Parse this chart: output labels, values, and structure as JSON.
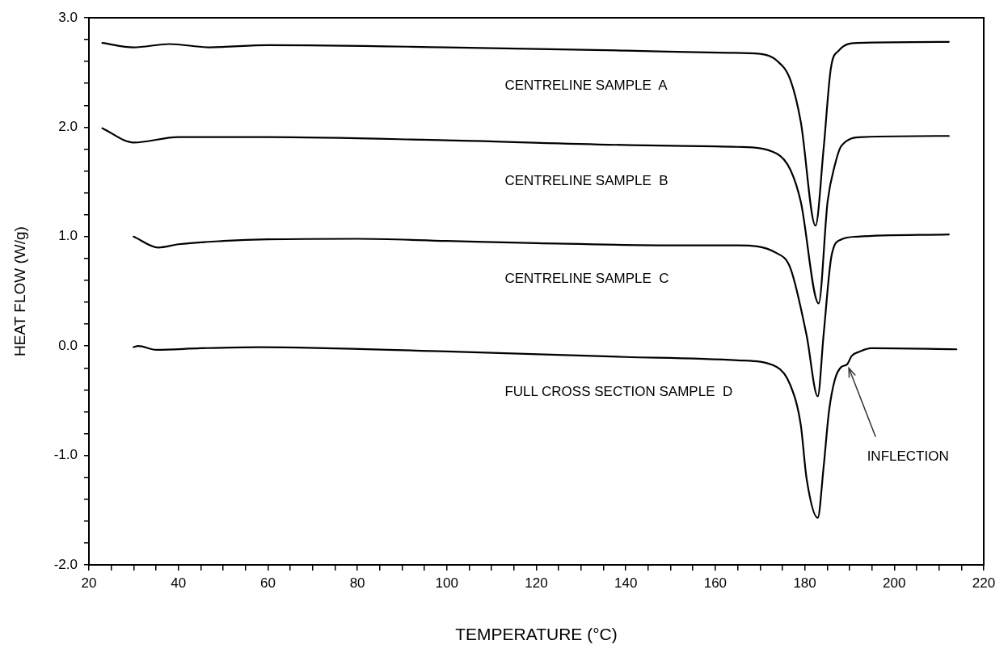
{
  "chart_data": {
    "type": "line",
    "xlabel": "TEMPERATURE (°C)",
    "ylabel": "HEAT FLOW (W/g)",
    "xlim": [
      20,
      220
    ],
    "ylim": [
      -2.0,
      3.0
    ],
    "xticks": [
      20,
      {
        "value": 25,
        "label": null
      },
      40,
      {
        "value": 35,
        "label": null
      },
      {
        "value": 30,
        "label": null
      },
      {
        "value": 45,
        "label": null
      },
      {
        "value": 50,
        "label": null
      },
      {
        "value": 55,
        "label": null
      },
      60,
      {
        "value": 65,
        "label": null
      },
      {
        "value": 70,
        "label": null
      },
      {
        "value": 75,
        "label": null
      },
      80,
      {
        "value": 85,
        "label": null
      },
      {
        "value": 90,
        "label": null
      },
      {
        "value": 95,
        "label": null
      },
      100,
      {
        "value": 105,
        "label": null
      },
      {
        "value": 110,
        "label": null
      },
      {
        "value": 115,
        "label": null
      },
      120,
      {
        "value": 125,
        "label": null
      },
      {
        "value": 130,
        "label": null
      },
      {
        "value": 135,
        "label": null
      },
      140,
      {
        "value": 145,
        "label": null
      },
      {
        "value": 150,
        "label": null
      },
      {
        "value": 155,
        "label": null
      },
      160,
      {
        "value": 165,
        "label": null
      },
      {
        "value": 170,
        "label": null
      },
      {
        "value": 175,
        "label": null
      },
      180,
      {
        "value": 185,
        "label": null
      },
      {
        "value": 190,
        "label": null
      },
      {
        "value": 195,
        "label": null
      },
      200,
      {
        "value": 205,
        "label": null
      },
      {
        "value": 210,
        "label": null
      },
      {
        "value": 215,
        "label": null
      },
      220
    ],
    "yticks": [
      {
        "value": -2.0,
        "label": "-2.0"
      },
      {
        "value": -1.8,
        "label": null
      },
      {
        "value": -1.6,
        "label": null
      },
      {
        "value": -1.4,
        "label": null
      },
      {
        "value": -1.2,
        "label": null
      },
      {
        "value": -1.0,
        "label": "-1.0"
      },
      {
        "value": -0.8,
        "label": null
      },
      {
        "value": -0.6,
        "label": null
      },
      {
        "value": -0.4,
        "label": null
      },
      {
        "value": -0.2,
        "label": null
      },
      {
        "value": 0,
        "label": "0.0"
      },
      {
        "value": 0.2,
        "label": null
      },
      {
        "value": 0.4,
        "label": null
      },
      {
        "value": 0.6,
        "label": null
      },
      {
        "value": 0.8,
        "label": null
      },
      {
        "value": 1.0,
        "label": "1.0"
      },
      {
        "value": 1.2,
        "label": null
      },
      {
        "value": 1.4,
        "label": null
      },
      {
        "value": 1.6,
        "label": null
      },
      {
        "value": 1.8,
        "label": null
      },
      {
        "value": 2.0,
        "label": "2.0"
      },
      {
        "value": 2.2,
        "label": null
      },
      {
        "value": 2.4,
        "label": null
      },
      {
        "value": 2.6,
        "label": null
      },
      {
        "value": 2.8,
        "label": null
      },
      {
        "value": 3.0,
        "label": "3.0"
      }
    ],
    "grid": false,
    "legend": false,
    "marker": "none",
    "line_style": "solid",
    "series": [
      {
        "name": "CENTRELINE SAMPLE  A",
        "color": "#000000",
        "x": [
          23,
          30,
          38,
          47,
          60,
          100,
          140,
          162.9,
          170,
          173.7,
          176.8,
          179.1,
          182.4,
          184.2,
          185.8,
          187.6,
          191.8,
          212.2
        ],
        "values": [
          2.77,
          2.73,
          2.76,
          2.73,
          2.75,
          2.73,
          2.7,
          2.68,
          2.67,
          2.61,
          2.43,
          2.05,
          1.1,
          1.8,
          2.53,
          2.7,
          2.77,
          2.78
        ]
      },
      {
        "name": "CENTRELINE SAMPLE  B",
        "color": "#000000",
        "x": [
          23,
          30,
          40,
          60,
          100,
          150,
          165,
          173.7,
          176.8,
          179.1,
          183.1,
          185.1,
          186.7,
          188.2,
          193,
          212.2
        ],
        "values": [
          1.99,
          1.86,
          1.91,
          1.91,
          1.88,
          1.83,
          1.82,
          1.76,
          1.61,
          1.32,
          0.39,
          1.32,
          1.65,
          1.83,
          1.91,
          1.92
        ]
      },
      {
        "name": "CENTRELINE SAMPLE  C",
        "color": "#000000",
        "x": [
          30,
          35.5,
          40,
          50,
          60,
          80,
          100,
          120,
          150,
          165,
          173.7,
          176.8,
          180.4,
          182.9,
          184.2,
          186,
          188.2,
          191.8,
          212.2
        ],
        "values": [
          1.0,
          0.9,
          0.93,
          0.96,
          0.975,
          0.98,
          0.96,
          0.94,
          0.92,
          0.92,
          0.85,
          0.71,
          0.1,
          -0.46,
          0.1,
          0.83,
          0.975,
          1.0,
          1.02
        ]
      },
      {
        "name": "FULL CROSS SECTION SAMPLE  D",
        "color": "#000000",
        "x": [
          30,
          31,
          35,
          45,
          58,
          100,
          140,
          165,
          173.7,
          176.8,
          179.1,
          180.4,
          182.9,
          184.2,
          185.4,
          186.7,
          188.2,
          189.4,
          190.5,
          192.3,
          194.8,
          213.9
        ],
        "values": [
          -0.01,
          0.0,
          -0.035,
          -0.02,
          -0.01,
          -0.05,
          -0.1,
          -0.13,
          -0.19,
          -0.36,
          -0.72,
          -1.21,
          -1.57,
          -1.11,
          -0.6,
          -0.31,
          -0.19,
          -0.17,
          -0.09,
          -0.05,
          -0.02,
          -0.03
        ]
      }
    ],
    "annotations": [
      {
        "text": "INFLECTION",
        "x": 189.5,
        "y": -0.18
      }
    ]
  }
}
